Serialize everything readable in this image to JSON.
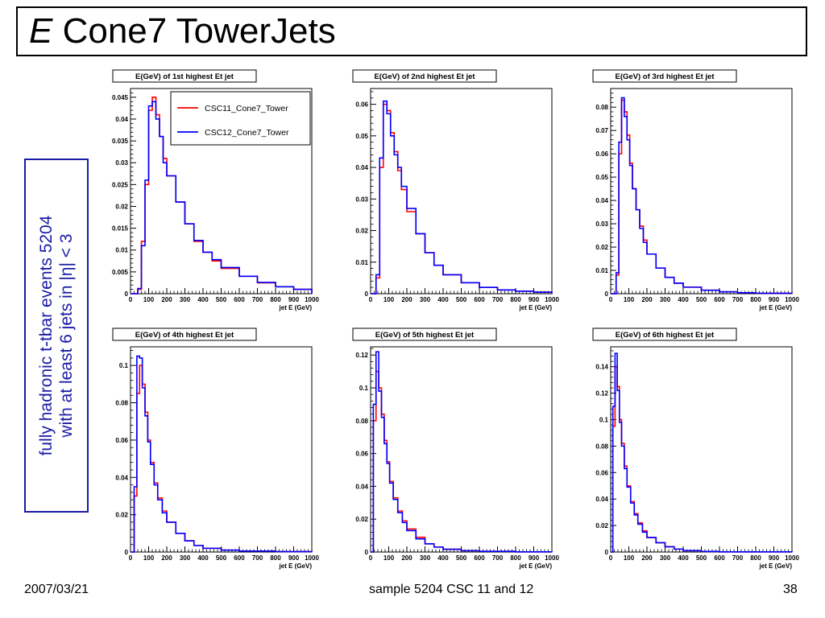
{
  "slide": {
    "title_italic": "E",
    "title_rest": " Cone7 TowerJets",
    "side_label_line1": "fully hadronic t-tbar events 5204",
    "side_label_line2": "with at least 6 jets in |η| < 3",
    "footer_date": "2007/03/21",
    "footer_center": "sample 5204 CSC 11 and 12",
    "footer_page": "38"
  },
  "colors": {
    "series1": "#ff0000",
    "series2": "#0000ff",
    "box": "#1a1aa6"
  },
  "chart_data": [
    {
      "type": "line",
      "title": "E(GeV) of 1st highest Et jet",
      "xlabel": "jet E (GeV)",
      "xlim": [
        0,
        1000
      ],
      "ylim": [
        0,
        0.047
      ],
      "yticks": [
        0,
        0.005,
        0.01,
        0.015,
        0.02,
        0.025,
        0.03,
        0.035,
        0.04,
        0.045
      ],
      "ytick_labels": [
        "0",
        "0.005",
        "0.01",
        "0.015",
        "0.02",
        "0.025",
        "0.03",
        "0.035",
        "0.04",
        "0.045"
      ],
      "xticks": [
        0,
        100,
        200,
        300,
        400,
        500,
        600,
        700,
        800,
        900,
        1000
      ],
      "xtick_labels": [
        "0",
        "100",
        "200",
        "300",
        "400",
        "500",
        "600",
        "700",
        "800",
        "900",
        "1000"
      ],
      "legend": {
        "position": "top-right",
        "entries": [
          "CSC11_Cone7_Tower",
          "CSC12_Cone7_Tower"
        ]
      },
      "bin_edges_x": [
        0,
        40,
        60,
        80,
        100,
        120,
        140,
        160,
        180,
        200,
        250,
        300,
        350,
        400,
        450,
        500,
        600,
        700,
        800,
        900,
        1000
      ],
      "series": [
        {
          "name": "CSC11_Cone7_Tower",
          "color": "#ff0000",
          "values": [
            0,
            0.001,
            0.012,
            0.025,
            0.042,
            0.045,
            0.041,
            0.036,
            0.031,
            0.027,
            0.021,
            0.016,
            0.012,
            0.0095,
            0.0075,
            0.0058,
            0.004,
            0.0025,
            0.0016,
            0.001
          ]
        },
        {
          "name": "CSC12_Cone7_Tower",
          "color": "#0000ff",
          "values": [
            0,
            0.0012,
            0.011,
            0.026,
            0.043,
            0.044,
            0.04,
            0.036,
            0.03,
            0.027,
            0.021,
            0.016,
            0.0122,
            0.0095,
            0.0078,
            0.006,
            0.004,
            0.0026,
            0.0016,
            0.001
          ]
        }
      ]
    },
    {
      "type": "line",
      "title": "E(GeV) of 2nd highest Et jet",
      "xlabel": "jet E (GeV)",
      "xlim": [
        0,
        1000
      ],
      "ylim": [
        0,
        0.065
      ],
      "yticks": [
        0,
        0.01,
        0.02,
        0.03,
        0.04,
        0.05,
        0.06
      ],
      "ytick_labels": [
        "0",
        "0.01",
        "0.02",
        "0.03",
        "0.04",
        "0.05",
        "0.06"
      ],
      "xticks": [
        0,
        100,
        200,
        300,
        400,
        500,
        600,
        700,
        800,
        900,
        1000
      ],
      "xtick_labels": [
        "0",
        "100",
        "200",
        "300",
        "400",
        "500",
        "600",
        "700",
        "800",
        "900",
        "1000"
      ],
      "bin_edges_x": [
        0,
        30,
        50,
        70,
        90,
        110,
        130,
        150,
        170,
        200,
        250,
        300,
        350,
        400,
        500,
        600,
        700,
        800,
        900,
        1000
      ],
      "series": [
        {
          "name": "CSC11_Cone7_Tower",
          "color": "#ff0000",
          "values": [
            0,
            0.005,
            0.04,
            0.06,
            0.058,
            0.051,
            0.045,
            0.039,
            0.033,
            0.026,
            0.019,
            0.013,
            0.009,
            0.006,
            0.0035,
            0.002,
            0.0012,
            0.0008,
            0.0005
          ]
        },
        {
          "name": "CSC12_Cone7_Tower",
          "color": "#0000ff",
          "values": [
            0,
            0.006,
            0.043,
            0.061,
            0.057,
            0.05,
            0.044,
            0.04,
            0.034,
            0.027,
            0.019,
            0.013,
            0.009,
            0.006,
            0.0035,
            0.002,
            0.0012,
            0.0008,
            0.0005
          ]
        }
      ]
    },
    {
      "type": "line",
      "title": "E(GeV) of 3rd highest Et jet",
      "xlabel": "jet E (GeV)",
      "xlim": [
        0,
        1000
      ],
      "ylim": [
        0,
        0.088
      ],
      "yticks": [
        0,
        0.01,
        0.02,
        0.03,
        0.04,
        0.05,
        0.06,
        0.07,
        0.08
      ],
      "ytick_labels": [
        "0",
        "0.01",
        "0.02",
        "0.03",
        "0.04",
        "0.05",
        "0.06",
        "0.07",
        "0.08"
      ],
      "xticks": [
        0,
        100,
        200,
        300,
        400,
        500,
        600,
        700,
        800,
        900,
        1000
      ],
      "xtick_labels": [
        "0",
        "100",
        "200",
        "300",
        "400",
        "500",
        "600",
        "700",
        "800",
        "900",
        "1000"
      ],
      "bin_edges_x": [
        0,
        30,
        45,
        60,
        75,
        90,
        105,
        120,
        140,
        160,
        180,
        200,
        250,
        300,
        350,
        400,
        500,
        600,
        700,
        800,
        1000
      ],
      "series": [
        {
          "name": "CSC11_Cone7_Tower",
          "color": "#ff0000",
          "values": [
            0,
            0.008,
            0.06,
            0.083,
            0.078,
            0.068,
            0.056,
            0.045,
            0.036,
            0.029,
            0.023,
            0.017,
            0.011,
            0.007,
            0.0045,
            0.0028,
            0.0015,
            0.0008,
            0.0004,
            0.0002
          ]
        },
        {
          "name": "CSC12_Cone7_Tower",
          "color": "#0000ff",
          "values": [
            0,
            0.009,
            0.065,
            0.084,
            0.076,
            0.066,
            0.055,
            0.045,
            0.036,
            0.028,
            0.022,
            0.017,
            0.011,
            0.007,
            0.0045,
            0.0028,
            0.0015,
            0.0008,
            0.0004,
            0.0002
          ]
        }
      ]
    },
    {
      "type": "line",
      "title": "E(GeV) of 4th highest Et jet",
      "xlabel": "jet E (GeV)",
      "xlim": [
        0,
        1000
      ],
      "ylim": [
        0,
        0.11
      ],
      "yticks": [
        0,
        0.02,
        0.04,
        0.06,
        0.08,
        0.1
      ],
      "ytick_labels": [
        "0",
        "0.02",
        "0.04",
        "0.06",
        "0.08",
        "0.1"
      ],
      "xticks": [
        0,
        100,
        200,
        300,
        400,
        500,
        600,
        700,
        800,
        900,
        1000
      ],
      "xtick_labels": [
        "0",
        "100",
        "200",
        "300",
        "400",
        "500",
        "600",
        "700",
        "800",
        "900",
        "1000"
      ],
      "bin_edges_x": [
        0,
        20,
        35,
        50,
        65,
        80,
        95,
        110,
        130,
        150,
        175,
        200,
        250,
        300,
        350,
        400,
        500,
        600,
        800,
        1000
      ],
      "series": [
        {
          "name": "CSC11_Cone7_Tower",
          "color": "#ff0000",
          "values": [
            0,
            0.03,
            0.085,
            0.1,
            0.09,
            0.075,
            0.06,
            0.048,
            0.037,
            0.029,
            0.022,
            0.016,
            0.01,
            0.006,
            0.0035,
            0.002,
            0.001,
            0.0005,
            0.0002
          ]
        },
        {
          "name": "CSC12_Cone7_Tower",
          "color": "#0000ff",
          "values": [
            0,
            0.035,
            0.105,
            0.104,
            0.088,
            0.073,
            0.059,
            0.047,
            0.036,
            0.028,
            0.021,
            0.016,
            0.01,
            0.006,
            0.0035,
            0.002,
            0.001,
            0.0005,
            0.0002
          ]
        }
      ]
    },
    {
      "type": "line",
      "title": "E(GeV) of 5th highest Et jet",
      "xlabel": "jet E (GeV)",
      "xlim": [
        0,
        1000
      ],
      "ylim": [
        0,
        0.125
      ],
      "yticks": [
        0,
        0.02,
        0.04,
        0.06,
        0.08,
        0.1,
        0.12
      ],
      "ytick_labels": [
        "0",
        "0.02",
        "0.04",
        "0.06",
        "0.08",
        "0.1",
        "0.12"
      ],
      "xticks": [
        0,
        100,
        200,
        300,
        400,
        500,
        600,
        700,
        800,
        900,
        1000
      ],
      "xtick_labels": [
        "0",
        "100",
        "200",
        "300",
        "400",
        "500",
        "600",
        "700",
        "800",
        "900",
        "1000"
      ],
      "bin_edges_x": [
        0,
        15,
        30,
        45,
        60,
        75,
        90,
        105,
        125,
        150,
        175,
        200,
        250,
        300,
        350,
        400,
        500,
        600,
        800,
        1000
      ],
      "series": [
        {
          "name": "CSC11_Cone7_Tower",
          "color": "#ff0000",
          "values": [
            0,
            0.08,
            0.11,
            0.1,
            0.084,
            0.068,
            0.055,
            0.043,
            0.033,
            0.025,
            0.019,
            0.014,
            0.009,
            0.005,
            0.003,
            0.0017,
            0.0008,
            0.0004,
            0.0001
          ]
        },
        {
          "name": "CSC12_Cone7_Tower",
          "color": "#0000ff",
          "values": [
            0,
            0.09,
            0.122,
            0.098,
            0.082,
            0.066,
            0.054,
            0.042,
            0.032,
            0.024,
            0.018,
            0.013,
            0.008,
            0.005,
            0.003,
            0.0017,
            0.0008,
            0.0004,
            0.0001
          ]
        }
      ]
    },
    {
      "type": "line",
      "title": "E(GeV) of 6th highest Et jet",
      "xlabel": "jet E (GeV)",
      "xlim": [
        0,
        1000
      ],
      "ylim": [
        0,
        0.155
      ],
      "yticks": [
        0,
        0.02,
        0.04,
        0.06,
        0.08,
        0.1,
        0.12,
        0.14
      ],
      "ytick_labels": [
        "0",
        "0.02",
        "0.04",
        "0.06",
        "0.08",
        "0.1",
        "0.12",
        "0.14"
      ],
      "xticks": [
        0,
        100,
        200,
        300,
        400,
        500,
        600,
        700,
        800,
        900,
        1000
      ],
      "xtick_labels": [
        "0",
        "100",
        "200",
        "300",
        "400",
        "500",
        "600",
        "700",
        "800",
        "900",
        "1000"
      ],
      "bin_edges_x": [
        0,
        12,
        24,
        36,
        48,
        60,
        75,
        90,
        110,
        130,
        150,
        175,
        200,
        250,
        300,
        350,
        400,
        500,
        600,
        1000
      ],
      "series": [
        {
          "name": "CSC11_Cone7_Tower",
          "color": "#ff0000",
          "values": [
            0,
            0.095,
            0.14,
            0.125,
            0.1,
            0.082,
            0.065,
            0.05,
            0.038,
            0.029,
            0.022,
            0.016,
            0.011,
            0.007,
            0.004,
            0.0022,
            0.001,
            0.0004,
            0.0001
          ]
        },
        {
          "name": "CSC12_Cone7_Tower",
          "color": "#0000ff",
          "values": [
            0,
            0.11,
            0.15,
            0.122,
            0.098,
            0.08,
            0.063,
            0.049,
            0.037,
            0.028,
            0.021,
            0.015,
            0.011,
            0.007,
            0.004,
            0.0022,
            0.001,
            0.0004,
            0.0001
          ]
        }
      ]
    }
  ]
}
